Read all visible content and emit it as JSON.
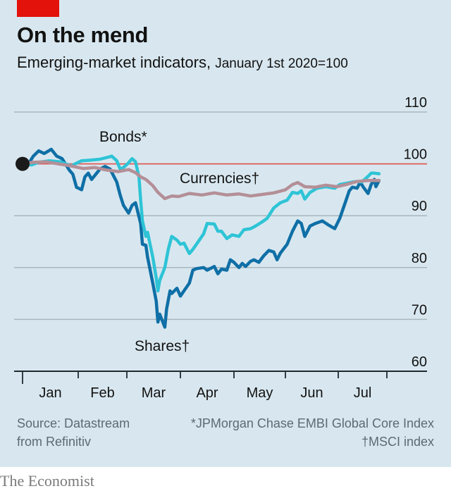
{
  "header": {
    "title": "On the mend",
    "subtitle_main": "Emerging-market indicators,",
    "subtitle_unit": "January 1st 2020=100"
  },
  "footer": {
    "source_line1": "Source: Datastream",
    "source_line2": "from Refinitiv",
    "note1": "*JPMorgan Chase EMBI Global Core Index",
    "note2": "†MSCI index",
    "brand": "The Economist"
  },
  "colors": {
    "accent_red": "#e3120b",
    "bonds": "#2ec4d6",
    "shares": "#0f6fa6",
    "currencies": "#b48f97",
    "reference_line": "#e05a55",
    "background": "#d8e7ef"
  },
  "chart_data": {
    "type": "line",
    "title": "On the mend",
    "subtitle": "Emerging-market indicators, January 1st 2020=100",
    "xlabel": "",
    "ylabel": "",
    "ylim": [
      60,
      110
    ],
    "yticks": [
      "110",
      "100",
      "90",
      "80",
      "70",
      "60"
    ],
    "xticks": [
      "Jan",
      "Feb",
      "Mar",
      "Apr",
      "May",
      "Jun",
      "Jul"
    ],
    "grid": true,
    "reference_line": 100,
    "start_marker": {
      "date": "01-01",
      "value": 100
    },
    "annotations": [
      {
        "text": "Bonds*",
        "series": "Bonds"
      },
      {
        "text": "Currencies†",
        "series": "Currencies"
      },
      {
        "text": "Shares†",
        "series": "Shares"
      }
    ],
    "series": [
      {
        "name": "Bonds",
        "points": [
          [
            "01-01",
            100
          ],
          [
            "01-06",
            99.8
          ],
          [
            "01-10",
            100.3
          ],
          [
            "01-16",
            100.6
          ],
          [
            "01-22",
            100.4
          ],
          [
            "01-28",
            99.6
          ],
          [
            "02-03",
            100.6
          ],
          [
            "02-08",
            100.7
          ],
          [
            "02-14",
            100.9
          ],
          [
            "02-19",
            101.3
          ],
          [
            "02-21",
            101.5
          ],
          [
            "02-24",
            100.6
          ],
          [
            "02-26",
            99.0
          ],
          [
            "02-28",
            99.3
          ],
          [
            "03-02",
            100.2
          ],
          [
            "03-04",
            101.0
          ],
          [
            "03-06",
            100.4
          ],
          [
            "03-08",
            97.5
          ],
          [
            "03-09",
            93.0
          ],
          [
            "03-10",
            89.0
          ],
          [
            "03-12",
            86.0
          ],
          [
            "03-13",
            86.8
          ],
          [
            "03-16",
            82.0
          ],
          [
            "03-18",
            78.0
          ],
          [
            "03-19",
            75.5
          ],
          [
            "03-20",
            77.5
          ],
          [
            "03-23",
            80.0
          ],
          [
            "03-25",
            83.5
          ],
          [
            "03-27",
            86.0
          ],
          [
            "03-30",
            85.3
          ],
          [
            "04-01",
            84.5
          ],
          [
            "04-03",
            84.7
          ],
          [
            "04-06",
            82.7
          ],
          [
            "04-08",
            83.5
          ],
          [
            "04-10",
            84.5
          ],
          [
            "04-14",
            86.5
          ],
          [
            "04-16",
            88.5
          ],
          [
            "04-20",
            88.4
          ],
          [
            "04-22",
            87.0
          ],
          [
            "04-24",
            87.0
          ],
          [
            "04-27",
            85.6
          ],
          [
            "04-30",
            86.3
          ],
          [
            "05-04",
            86.0
          ],
          [
            "05-07",
            87.3
          ],
          [
            "05-11",
            87.5
          ],
          [
            "05-14",
            88.0
          ],
          [
            "05-18",
            88.8
          ],
          [
            "05-21",
            89.5
          ],
          [
            "05-25",
            91.5
          ],
          [
            "05-27",
            92.0
          ],
          [
            "05-29",
            92.5
          ],
          [
            "06-02",
            93.0
          ],
          [
            "06-05",
            94.5
          ],
          [
            "06-08",
            94.3
          ],
          [
            "06-10",
            94.8
          ],
          [
            "06-12",
            93.2
          ],
          [
            "06-15",
            94.5
          ],
          [
            "06-19",
            95.3
          ],
          [
            "06-24",
            95.6
          ],
          [
            "06-29",
            95.3
          ],
          [
            "07-02",
            96.0
          ],
          [
            "07-07",
            96.3
          ],
          [
            "07-10",
            96.5
          ],
          [
            "07-13",
            96.6
          ],
          [
            "07-16",
            96.5
          ],
          [
            "07-20",
            97.6
          ],
          [
            "07-22",
            98.2
          ],
          [
            "07-24",
            98.2
          ],
          [
            "07-27",
            98.1
          ]
        ]
      },
      {
        "name": "Shares",
        "points": [
          [
            "01-01",
            100
          ],
          [
            "01-04",
            99.8
          ],
          [
            "01-07",
            101.5
          ],
          [
            "01-10",
            102.5
          ],
          [
            "01-13",
            102.0
          ],
          [
            "01-17",
            102.8
          ],
          [
            "01-20",
            101.5
          ],
          [
            "01-23",
            101.0
          ],
          [
            "01-27",
            98.8
          ],
          [
            "01-29",
            98.0
          ],
          [
            "01-31",
            95.5
          ],
          [
            "02-03",
            95.0
          ],
          [
            "02-05",
            97.5
          ],
          [
            "02-07",
            98.2
          ],
          [
            "02-09",
            97.0
          ],
          [
            "02-12",
            98.2
          ],
          [
            "02-14",
            99.0
          ],
          [
            "02-17",
            99.5
          ],
          [
            "02-20",
            99.0
          ],
          [
            "02-24",
            96.5
          ],
          [
            "02-26",
            94.0
          ],
          [
            "02-28",
            92.0
          ],
          [
            "03-02",
            90.5
          ],
          [
            "03-04",
            92.0
          ],
          [
            "03-06",
            92.5
          ],
          [
            "03-09",
            88.5
          ],
          [
            "03-10",
            84.5
          ],
          [
            "03-12",
            84.3
          ],
          [
            "03-13",
            82.0
          ],
          [
            "03-16",
            77.0
          ],
          [
            "03-18",
            73.5
          ],
          [
            "03-19",
            69.5
          ],
          [
            "03-20",
            71.0
          ],
          [
            "03-23",
            68.5
          ],
          [
            "03-24",
            72.0
          ],
          [
            "03-26",
            75.5
          ],
          [
            "03-27",
            75.0
          ],
          [
            "03-30",
            76.0
          ],
          [
            "04-01",
            74.5
          ],
          [
            "04-03",
            75.5
          ],
          [
            "04-06",
            77.0
          ],
          [
            "04-08",
            79.5
          ],
          [
            "04-10",
            79.8
          ],
          [
            "04-14",
            80.0
          ],
          [
            "04-16",
            79.5
          ],
          [
            "04-20",
            80.2
          ],
          [
            "04-22",
            78.8
          ],
          [
            "04-24",
            79.7
          ],
          [
            "04-27",
            79.5
          ],
          [
            "04-29",
            81.5
          ],
          [
            "05-01",
            81.0
          ],
          [
            "05-04",
            80.0
          ],
          [
            "05-06",
            80.8
          ],
          [
            "05-08",
            80.2
          ],
          [
            "05-11",
            81.2
          ],
          [
            "05-13",
            81.5
          ],
          [
            "05-16",
            81.0
          ],
          [
            "05-19",
            82.3
          ],
          [
            "05-22",
            83.3
          ],
          [
            "05-25",
            83.0
          ],
          [
            "05-27",
            81.5
          ],
          [
            "05-29",
            82.8
          ],
          [
            "06-02",
            84.5
          ],
          [
            "06-05",
            87.0
          ],
          [
            "06-08",
            89.0
          ],
          [
            "06-10",
            88.5
          ],
          [
            "06-12",
            86.0
          ],
          [
            "06-15",
            88.0
          ],
          [
            "06-18",
            88.5
          ],
          [
            "06-22",
            89.0
          ],
          [
            "06-25",
            88.3
          ],
          [
            "06-29",
            87.5
          ],
          [
            "07-02",
            89.5
          ],
          [
            "07-06",
            93.0
          ],
          [
            "07-08",
            94.8
          ],
          [
            "07-10",
            95.5
          ],
          [
            "07-13",
            95.3
          ],
          [
            "07-15",
            96.5
          ],
          [
            "07-17",
            95.5
          ],
          [
            "07-20",
            94.3
          ],
          [
            "07-22",
            96.0
          ],
          [
            "07-24",
            97.0
          ],
          [
            "07-25",
            95.6
          ],
          [
            "07-27",
            96.8
          ]
        ]
      },
      {
        "name": "Currencies",
        "points": [
          [
            "01-01",
            100
          ],
          [
            "01-07",
            100.3
          ],
          [
            "01-14",
            100.4
          ],
          [
            "01-21",
            100.0
          ],
          [
            "01-28",
            99.6
          ],
          [
            "02-04",
            99.1
          ],
          [
            "02-11",
            99.3
          ],
          [
            "02-18",
            98.8
          ],
          [
            "02-25",
            98.5
          ],
          [
            "03-02",
            98.9
          ],
          [
            "03-06",
            98.3
          ],
          [
            "03-09",
            97.5
          ],
          [
            "03-12",
            97.0
          ],
          [
            "03-16",
            95.8
          ],
          [
            "03-19",
            94.5
          ],
          [
            "03-23",
            93.3
          ],
          [
            "03-27",
            93.8
          ],
          [
            "03-31",
            93.7
          ],
          [
            "04-06",
            94.3
          ],
          [
            "04-13",
            94.0
          ],
          [
            "04-20",
            94.4
          ],
          [
            "04-27",
            94.0
          ],
          [
            "05-04",
            94.2
          ],
          [
            "05-11",
            93.8
          ],
          [
            "05-18",
            94.1
          ],
          [
            "05-25",
            94.4
          ],
          [
            "06-01",
            95.0
          ],
          [
            "06-05",
            96.0
          ],
          [
            "06-08",
            96.4
          ],
          [
            "06-12",
            95.6
          ],
          [
            "06-18",
            95.5
          ],
          [
            "06-24",
            95.9
          ],
          [
            "06-30",
            95.6
          ],
          [
            "07-06",
            96.0
          ],
          [
            "07-13",
            96.6
          ],
          [
            "07-20",
            96.8
          ],
          [
            "07-27",
            96.8
          ]
        ]
      }
    ]
  }
}
